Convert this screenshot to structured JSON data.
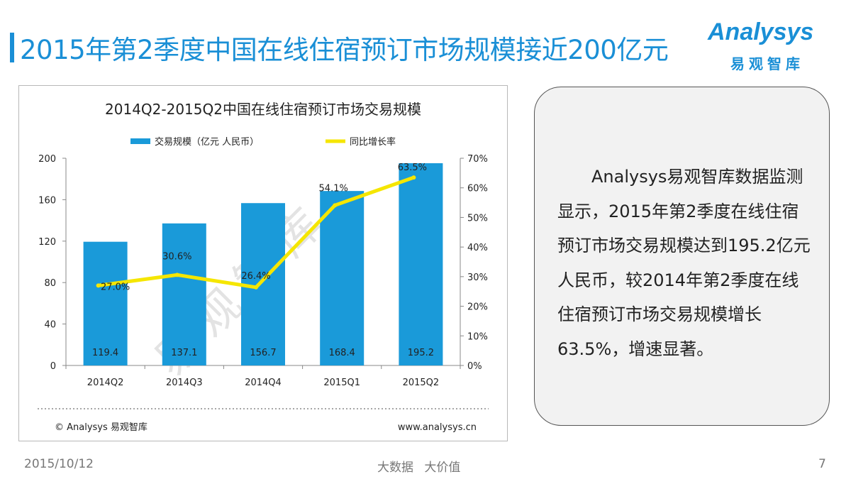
{
  "page": {
    "title": "2015年第2季度中国在线住宿预订市场规模接近200亿元",
    "logo_text": "Analysys",
    "logo_sub": "易观智库",
    "accent_color": "#1a8fd6"
  },
  "chart_data": {
    "type": "bar",
    "title": "2014Q2-2015Q2中国在线住宿预订市场交易规模",
    "categories": [
      "2014Q2",
      "2014Q3",
      "2014Q4",
      "2015Q1",
      "2015Q2"
    ],
    "series": [
      {
        "name": "交易规模（亿元 人民币）",
        "type": "bar",
        "axis": "left",
        "color": "#1a9ad9",
        "values": [
          119.4,
          137.1,
          156.7,
          168.4,
          195.2
        ],
        "labels": [
          "119.4",
          "137.1",
          "156.7",
          "168.4",
          "195.2"
        ]
      },
      {
        "name": "同比增长率",
        "type": "line",
        "axis": "right",
        "color": "#f5e600",
        "values": [
          27.0,
          30.6,
          26.4,
          54.1,
          63.5
        ],
        "labels": [
          "27.0%",
          "30.6%",
          "26.4%",
          "54.1%",
          "63.5%"
        ]
      }
    ],
    "y_left": {
      "min": 0,
      "max": 200,
      "ticks": [
        0,
        40,
        80,
        120,
        160,
        200
      ],
      "tick_labels": [
        "0",
        "40",
        "80",
        "120",
        "160",
        "200"
      ]
    },
    "y_right": {
      "min": 0,
      "max": 70,
      "ticks": [
        0,
        10,
        20,
        30,
        40,
        50,
        60,
        70
      ],
      "tick_labels": [
        "0%",
        "10%",
        "20%",
        "30%",
        "40%",
        "50%",
        "60%",
        "70%"
      ]
    },
    "legend_position": "top",
    "watermark": "易观智库",
    "source_left": "© Analysys 易观智库",
    "source_right": "www.analysys.cn"
  },
  "textbox": {
    "text": "Analysys易观智库数据监测显示，2015年第2季度在线住宿预订市场交易规模达到195.2亿元人民币，较2014年第2季度在线住宿预订市场交易规模增长63.5%，增速显著。"
  },
  "footer": {
    "date": "2015/10/12",
    "slogan": "大数据 大价值",
    "page_number": "7"
  }
}
